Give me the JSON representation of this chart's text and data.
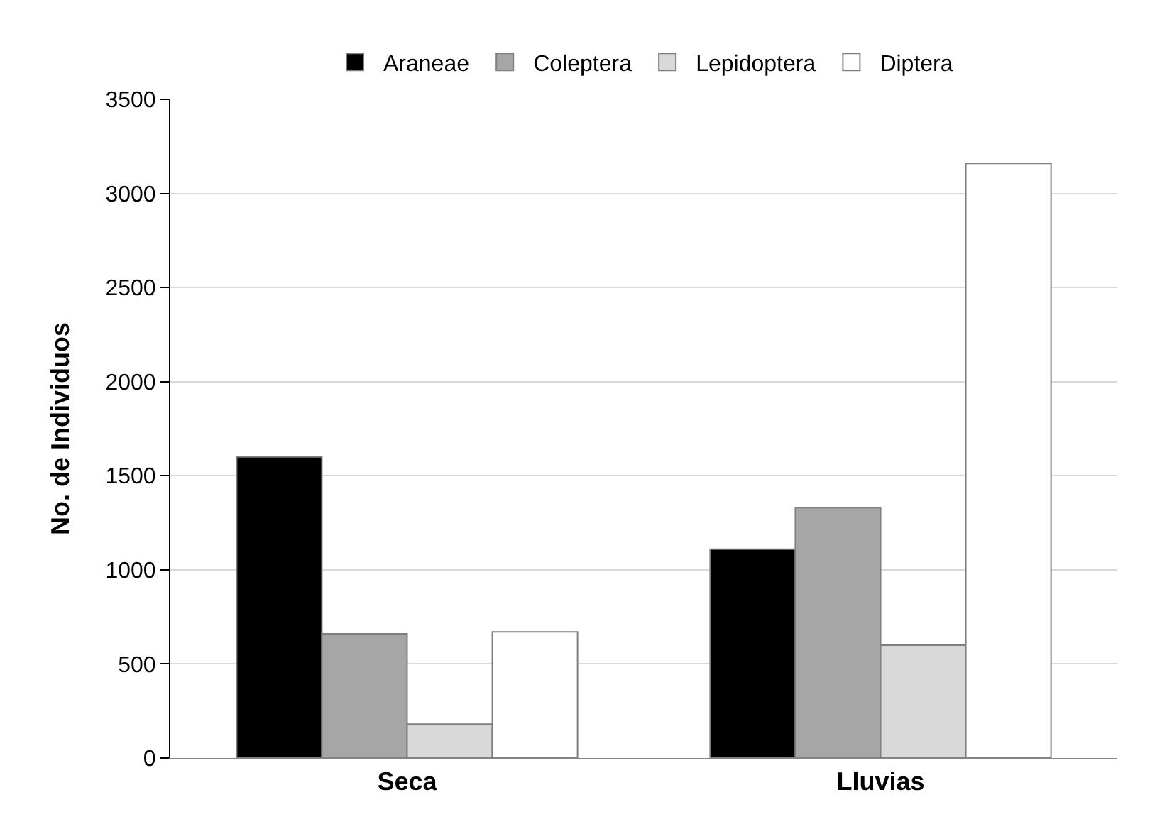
{
  "chart_data": {
    "type": "bar",
    "ylabel": "No. de Individuos",
    "categories": [
      "Seca",
      "Lluvias"
    ],
    "series": [
      {
        "name": "Araneae",
        "color": "#000000",
        "values": [
          1600,
          1110
        ]
      },
      {
        "name": "Coleptera",
        "color": "#a6a6a6",
        "values": [
          660,
          1330
        ]
      },
      {
        "name": "Lepidoptera",
        "color": "#d9d9d9",
        "values": [
          180,
          600
        ]
      },
      {
        "name": "Diptera",
        "color": "#ffffff",
        "values": [
          670,
          3160
        ]
      }
    ],
    "ylim": [
      0,
      3500
    ],
    "yticks": [
      0,
      500,
      1000,
      1500,
      2000,
      2500,
      3000,
      3500
    ],
    "grid": "y",
    "legend": "top"
  }
}
